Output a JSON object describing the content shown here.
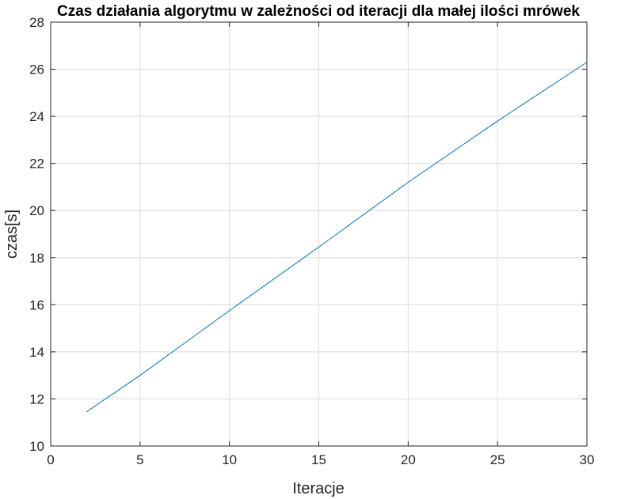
{
  "chart_data": {
    "type": "line",
    "title": "Czas działania algorytmu w zależności od iteracji dla małej ilości mrówek",
    "xlabel": "Iteracje",
    "ylabel": "czas[s]",
    "xlim": [
      0,
      30
    ],
    "ylim": [
      10,
      28
    ],
    "xticks": [
      "0",
      "5",
      "10",
      "15",
      "20",
      "25",
      "30"
    ],
    "yticks": [
      "10",
      "12",
      "14",
      "16",
      "18",
      "20",
      "22",
      "24",
      "26",
      "28"
    ],
    "grid": true,
    "series": [
      {
        "color": "#0072bd",
        "x": [
          2,
          5,
          10,
          15,
          20,
          25,
          30
        ],
        "y": [
          11.45,
          13.0,
          15.75,
          18.45,
          21.2,
          23.8,
          26.3
        ]
      }
    ]
  }
}
